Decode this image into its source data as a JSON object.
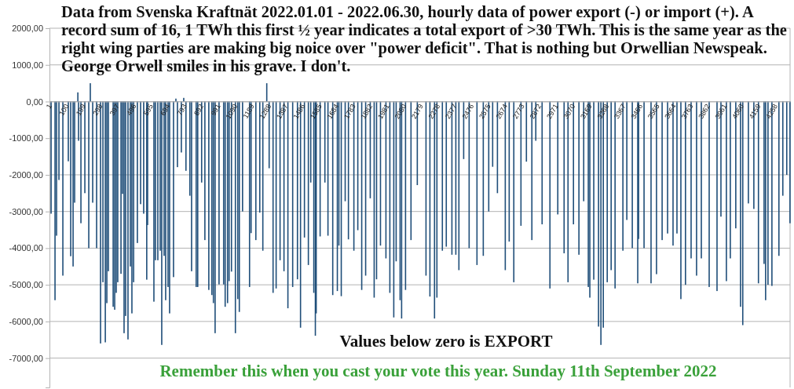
{
  "chart_data": {
    "type": "bar",
    "title": "Data from Svenska Kraftnät 2022.01.01 - 2022.06.30, hourly data of power export (-) or import (+). A record sum of 16, 1 TWh this first ½ year indicates a total export of >30 TWh. This is the same year as the right wing parties are making big noice over \"power deficit\". That is nothing but Orwellian Newspeak. George Orwell smiles in his grave. I don't.",
    "annotations": [
      "Values below zero is EXPORT",
      "Remember this when you cast your vote this year. Sunday 11th September 2022"
    ],
    "color": "#1f4e79",
    "x": [
      10,
      33,
      42,
      56,
      79,
      111,
      125,
      139,
      148,
      167,
      171,
      185,
      208,
      231,
      240,
      254,
      277,
      300,
      314,
      328,
      337,
      346,
      374,
      383,
      392,
      401,
      420,
      429,
      438,
      447,
      461,
      475,
      484,
      494,
      516,
      535,
      553,
      571,
      576,
      613,
      622,
      636,
      650,
      659,
      673,
      682,
      696,
      705,
      728,
      742,
      751,
      774,
      788,
      801,
      824,
      834,
      861,
      870,
      893,
      912,
      935,
      953,
      962,
      972,
      995,
      1022,
      1031,
      1045,
      1054,
      1068,
      1091,
      1105,
      1114,
      1133,
      1174,
      1183,
      1211,
      1234,
      1252,
      1275,
      1289,
      1312,
      1330,
      1353,
      1376,
      1399,
      1427,
      1455,
      1473,
      1496,
      1519,
      1533,
      1551,
      1560,
      1565,
      1588,
      1616,
      1634,
      1662,
      1689,
      1698,
      1712,
      1735,
      1754,
      1786,
      1809,
      1832,
      1855,
      1882,
      1905,
      1919,
      1942,
      1974,
      1997,
      2020,
      2034,
      2057,
      2066,
      2089,
      2121,
      2158,
      2209,
      2232,
      2259,
      2273,
      2305,
      2328,
      2361,
      2384,
      2402,
      2430,
      2462,
      2508,
      2545,
      2577,
      2600,
      2628,
      2674,
      2697,
      2724,
      2766,
      2798,
      2830,
      2853,
      2890,
      2936,
      2982,
      3019,
      3042,
      3074,
      3106,
      3134,
      3161,
      3170,
      3193,
      3221,
      3235,
      3249,
      3272,
      3295,
      3318,
      3364,
      3387,
      3419,
      3451,
      3456,
      3488,
      3529,
      3561,
      3594,
      3626,
      3658,
      3681,
      3704,
      3731,
      3764,
      3796,
      3824,
      3870,
      3916,
      3939,
      3971,
      3994,
      4026,
      4054,
      4067,
      4100,
      4132,
      4159,
      4192,
      4201,
      4215,
      4238,
      4279,
      4302,
      4325,
      4344
    ],
    "values": [
      -3060,
      -5420,
      -3660,
      -2140,
      -4750,
      -1630,
      -4220,
      -4500,
      -2760,
      250,
      -1070,
      -3320,
      -2500,
      -4000,
      500,
      -2760,
      -4000,
      -6600,
      -4930,
      -6570,
      -5500,
      -4630,
      -5600,
      -5680,
      -5220,
      -4930,
      -4700,
      -2520,
      -6320,
      -5850,
      -6490,
      -4500,
      -5780,
      -4930,
      -3860,
      -2800,
      -3060,
      -4860,
      -3370,
      -5460,
      -4330,
      -4330,
      -4070,
      -6640,
      -4210,
      -5420,
      -5060,
      -5780,
      -4790,
      80,
      -1790,
      -1390,
      100,
      -1890,
      -2570,
      -4630,
      -5060,
      -5060,
      -2210,
      -3780,
      -5140,
      -5280,
      -5500,
      -6320,
      -4990,
      -4990,
      -5600,
      -5500,
      -4900,
      -4640,
      -6320,
      -5390,
      -5740,
      -3000,
      -5060,
      -3590,
      -3780,
      -3030,
      -4070,
      500,
      -1820,
      -5220,
      -5100,
      -4330,
      -4630,
      -5640,
      -5060,
      -4850,
      -6170,
      -3710,
      -4460,
      -2210,
      -5220,
      -6390,
      -5780,
      -3680,
      -2210,
      -3660,
      -5280,
      -5170,
      -3930,
      -5310,
      -2720,
      -3760,
      -4070,
      -3510,
      -5140,
      -4750,
      -2640,
      -5350,
      -4850,
      -3930,
      -4280,
      -5220,
      -5890,
      -4360,
      -5420,
      -5920,
      -5140,
      -3780,
      -2280,
      -4750,
      -5320,
      -5920,
      -5350,
      -4070,
      -3960,
      -4180,
      -4180,
      -4600,
      -1570,
      -4000,
      -4460,
      -4210,
      -3000,
      -1780,
      -2500,
      -4600,
      -3820,
      -4930,
      -3390,
      -1640,
      -3780,
      -1070,
      -3350,
      -5100,
      -3080,
      -4140,
      -4930,
      -3350,
      -4180,
      -2720,
      -5060,
      -5350,
      -4860,
      -6140,
      -6640,
      -6170,
      -4930,
      -4600,
      -5100,
      -4070,
      -3230,
      -4000,
      -4960,
      -3750,
      -4000,
      -4960,
      -4710,
      -3780,
      -3600,
      -3930,
      -3600,
      -5390,
      -5000,
      -4280,
      -4750,
      -4280,
      -5060,
      -5170,
      -3140,
      -4900,
      -4280,
      -3460,
      -5600,
      -6100,
      -2780,
      -2930,
      -4960,
      -4430,
      -5420,
      -5000,
      -5030,
      -4210,
      -2570,
      -2000,
      -3320
    ],
    "xlim": [
      0.5,
      4344.5
    ],
    "xticks": [
      1,
      100,
      199,
      298,
      397,
      496,
      595,
      694,
      793,
      892,
      991,
      1090,
      1189,
      1288,
      1387,
      1486,
      1585,
      1684,
      1783,
      1882,
      1981,
      2080,
      2179,
      2278,
      2377,
      2476,
      2575,
      2674,
      2773,
      2872,
      2971,
      3070,
      3169,
      3268,
      3367,
      3466,
      3565,
      3664,
      3763,
      3862,
      3961,
      4060,
      4159,
      4258
    ],
    "ylim": [
      -7800,
      2000
    ],
    "yticks": [
      {
        "value": -7000,
        "label": "-7000,00"
      },
      {
        "value": -6000,
        "label": "-6000,00"
      },
      {
        "value": -5000,
        "label": "-5000,00"
      },
      {
        "value": -4000,
        "label": "-4000,00"
      },
      {
        "value": -3000,
        "label": "-3000,00"
      },
      {
        "value": -2000,
        "label": "-2000,00"
      },
      {
        "value": -1000,
        "label": "-1000,00"
      },
      {
        "value": 0,
        "label": "0,00"
      },
      {
        "value": 1000,
        "label": "1000,00"
      },
      {
        "value": 2000,
        "label": "2000,00"
      }
    ],
    "grid": "y"
  }
}
